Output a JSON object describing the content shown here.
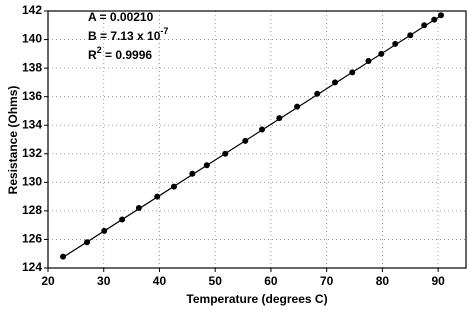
{
  "chart_data": {
    "type": "scatter",
    "x_label": "Temperature (degrees C)",
    "y_label": "Resistance (Ohms)",
    "annotations": [
      {
        "text": "A = 0.00210"
      },
      {
        "text": "B = 7.13 x 10",
        "sup": "-7"
      },
      {
        "text": "R",
        "sup": "2",
        "after": " = 0.9996"
      }
    ],
    "series": [
      {
        "color": "#000000",
        "x": [
          22.7,
          27.0,
          30.1,
          33.3,
          36.3,
          39.6,
          42.6,
          45.9,
          48.5,
          51.8,
          55.4,
          58.4,
          61.5,
          64.7,
          68.3,
          71.5,
          74.6,
          77.5,
          79.8,
          82.3,
          85.0,
          87.5,
          89.3,
          90.5
        ],
        "values": [
          124.8,
          125.8,
          126.6,
          127.4,
          128.2,
          129.0,
          129.7,
          130.6,
          131.2,
          132.0,
          132.9,
          133.7,
          134.5,
          135.3,
          136.2,
          137.0,
          137.7,
          138.5,
          139.0,
          139.7,
          140.3,
          141.0,
          141.4,
          141.7
        ]
      }
    ],
    "fit": {
      "color": "#000000",
      "x": [
        22.5,
        91.0
      ],
      "values": [
        124.7,
        141.8
      ]
    },
    "xlim": [
      20,
      95
    ],
    "ylim": [
      124,
      142
    ],
    "xticks": [
      20,
      30,
      40,
      50,
      60,
      70,
      80,
      90
    ],
    "yticks": [
      124,
      126,
      128,
      130,
      132,
      134,
      136,
      138,
      140,
      142
    ],
    "grid": true
  }
}
